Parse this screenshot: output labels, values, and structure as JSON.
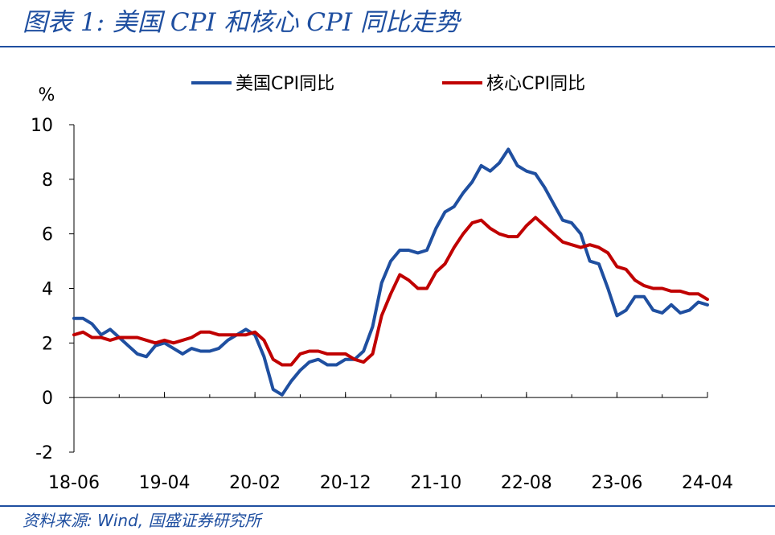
{
  "figure": {
    "title": "图表 1:  美国 CPI 和核心 CPI 同比走势",
    "source": "资料来源: Wind, 国盛证券研究所"
  },
  "chart_data": {
    "type": "line",
    "ylabel": "%",
    "ylim": [
      -2,
      10
    ],
    "yticks": [
      -2,
      0,
      2,
      4,
      6,
      8,
      10
    ],
    "x_tick_labels": [
      "18-06",
      "19-04",
      "20-02",
      "20-12",
      "21-10",
      "22-08",
      "23-06",
      "24-04"
    ],
    "x_start": "2018-06",
    "x_end": "2024-04",
    "grid": false,
    "legend_position": "top",
    "series": [
      {
        "name": "美国CPI同比",
        "color": "#1f4fa0",
        "values": [
          2.9,
          2.9,
          2.7,
          2.3,
          2.5,
          2.2,
          1.9,
          1.6,
          1.5,
          1.9,
          2.0,
          1.8,
          1.6,
          1.8,
          1.7,
          1.7,
          1.8,
          2.1,
          2.3,
          2.5,
          2.3,
          1.5,
          0.3,
          0.1,
          0.6,
          1.0,
          1.3,
          1.4,
          1.2,
          1.2,
          1.4,
          1.4,
          1.7,
          2.6,
          4.2,
          5.0,
          5.4,
          5.4,
          5.3,
          5.4,
          6.2,
          6.8,
          7.0,
          7.5,
          7.9,
          8.5,
          8.3,
          8.6,
          9.1,
          8.5,
          8.3,
          8.2,
          7.7,
          7.1,
          6.5,
          6.4,
          6.0,
          5.0,
          4.9,
          4.0,
          3.0,
          3.2,
          3.7,
          3.7,
          3.2,
          3.1,
          3.4,
          3.1,
          3.2,
          3.5,
          3.4
        ]
      },
      {
        "name": "核心CPI同比",
        "color": "#c00000",
        "values": [
          2.3,
          2.4,
          2.2,
          2.2,
          2.1,
          2.2,
          2.2,
          2.2,
          2.1,
          2.0,
          2.1,
          2.0,
          2.1,
          2.2,
          2.4,
          2.4,
          2.3,
          2.3,
          2.3,
          2.3,
          2.4,
          2.1,
          1.4,
          1.2,
          1.2,
          1.6,
          1.7,
          1.7,
          1.6,
          1.6,
          1.6,
          1.4,
          1.3,
          1.6,
          3.0,
          3.8,
          4.5,
          4.3,
          4.0,
          4.0,
          4.6,
          4.9,
          5.5,
          6.0,
          6.4,
          6.5,
          6.2,
          6.0,
          5.9,
          5.9,
          6.3,
          6.6,
          6.3,
          6.0,
          5.7,
          5.6,
          5.5,
          5.6,
          5.5,
          5.3,
          4.8,
          4.7,
          4.3,
          4.1,
          4.0,
          4.0,
          3.9,
          3.9,
          3.8,
          3.8,
          3.6
        ]
      }
    ]
  }
}
